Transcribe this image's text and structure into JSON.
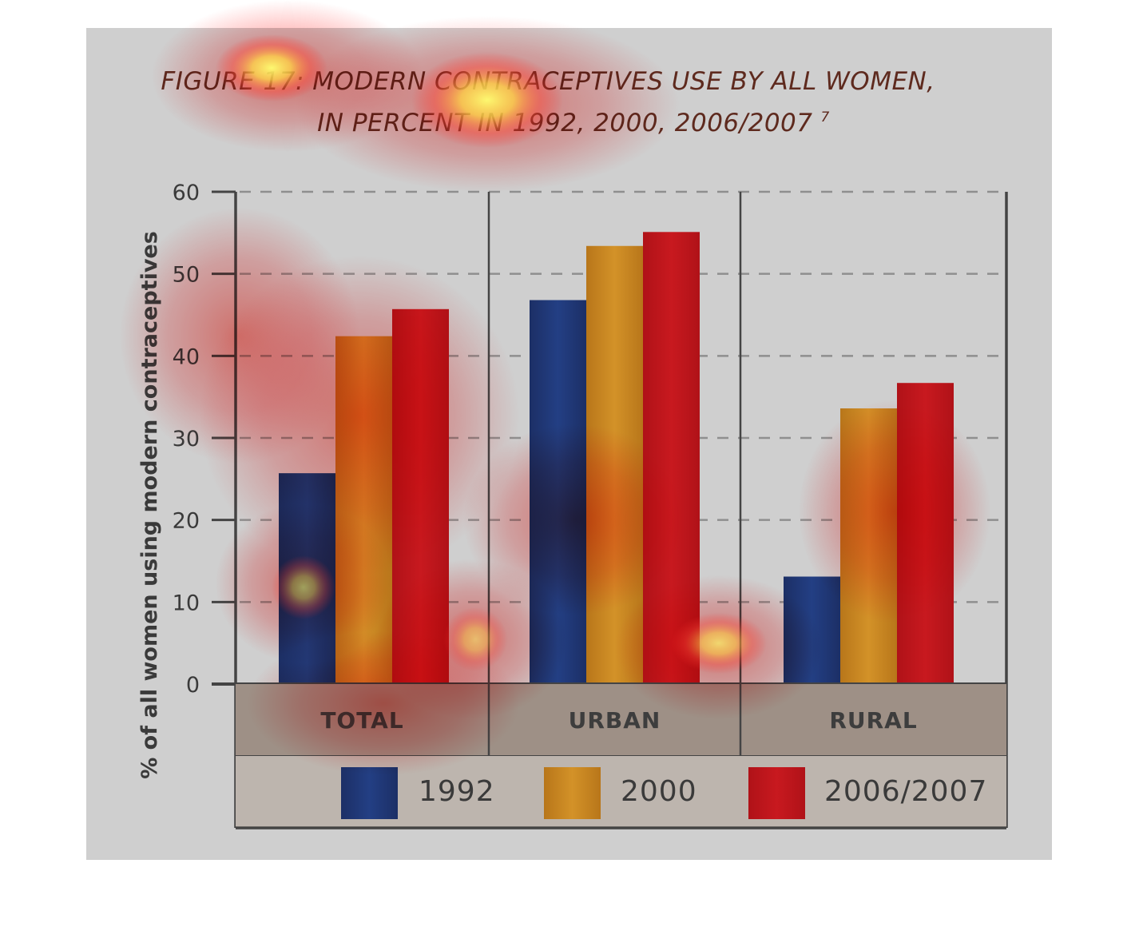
{
  "chart_data": {
    "type": "bar",
    "title_line1": "FIGURE 17: MODERN CONTRACEPTIVES USE BY ALL WOMEN,",
    "title_line2": "IN PERCENT IN 1992, 2000, 2006/2007",
    "title_footnote": "7",
    "ylabel": "% of all women using modern contraceptives",
    "xlabel": "",
    "ylim": [
      0,
      60
    ],
    "yticks": [
      "0",
      "10",
      "20",
      "30",
      "40",
      "50",
      "60"
    ],
    "grid": "horizontal dashed",
    "legend_position": "bottom",
    "categories": [
      "TOTAL",
      "URBAN",
      "RURAL"
    ],
    "series": [
      {
        "name": "1992",
        "values": [
          25.7,
          46.8,
          13.1
        ],
        "color": "#1f3a7a"
      },
      {
        "name": "2000",
        "values": [
          42.4,
          53.4,
          33.6
        ],
        "color": "#c8861a"
      },
      {
        "name": "2006/2007",
        "values": [
          45.7,
          55.1,
          36.7
        ],
        "color": "#c0161e"
      }
    ]
  },
  "colors": {
    "panel_background": "#cfcfcf",
    "category_band": "#9e9086",
    "legend_band": "#bdb5ae",
    "axis": "#444444",
    "heatmap_overlay": "attention heatmap (red/yellow)"
  }
}
